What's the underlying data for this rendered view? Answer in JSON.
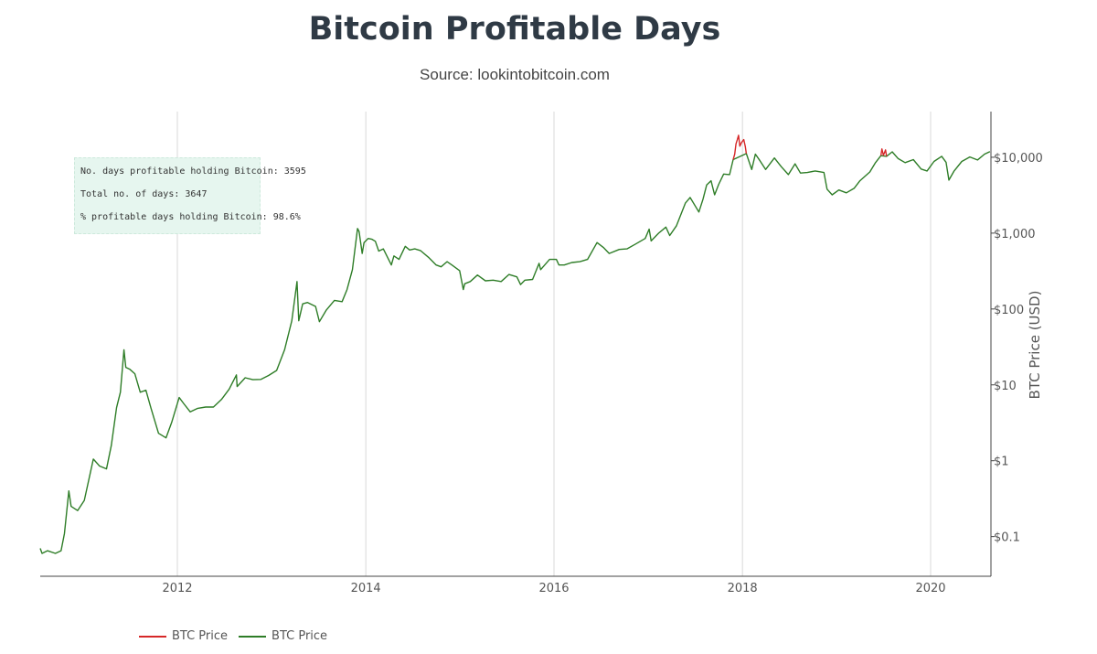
{
  "chart_data": {
    "type": "line",
    "title": "Bitcoin Profitable Days",
    "subtitle": "Source: lookintobitcoin.com",
    "ylabel": "BTC Price (USD)",
    "xlabel": "",
    "y_scale": "log",
    "ylim": [
      0.03,
      40000
    ],
    "xlim": [
      "2010-07-18",
      "2020-08-22"
    ],
    "x_ticks": [
      "2012",
      "2014",
      "2016",
      "2018",
      "2020"
    ],
    "y_ticks": [
      "$0.1",
      "$1",
      "$10",
      "$100",
      "$1,000",
      "$10,000"
    ],
    "grid": "vertical",
    "legend_position": "bottom-left",
    "series": [
      {
        "name": "BTC Price",
        "color": "#d62728",
        "segments": [
          [
            [
              "2017-11-26",
              9300
            ],
            [
              "2017-12-02",
              11000
            ],
            [
              "2017-12-07",
              15000
            ],
            [
              "2017-12-12",
              17000
            ],
            [
              "2017-12-17",
              19500
            ],
            [
              "2017-12-22",
              14000
            ],
            [
              "2017-12-28",
              15500
            ],
            [
              "2018-01-06",
              17100
            ],
            [
              "2018-01-12",
              13800
            ],
            [
              "2018-01-16",
              11200
            ]
          ],
          [
            [
              "2019-06-22",
              10500
            ],
            [
              "2019-06-26",
              12900
            ],
            [
              "2019-07-02",
              10600
            ],
            [
              "2019-07-10",
              12500
            ],
            [
              "2019-07-14",
              10300
            ]
          ]
        ]
      },
      {
        "name": "BTC Price",
        "color": "#2e7d27",
        "points": [
          [
            "2010-07-18",
            0.07
          ],
          [
            "2010-07-25",
            0.06
          ],
          [
            "2010-08-15",
            0.065
          ],
          [
            "2010-09-15",
            0.06
          ],
          [
            "2010-10-07",
            0.065
          ],
          [
            "2010-10-20",
            0.11
          ],
          [
            "2010-11-06",
            0.4
          ],
          [
            "2010-11-15",
            0.25
          ],
          [
            "2010-12-10",
            0.22
          ],
          [
            "2011-01-05",
            0.3
          ],
          [
            "2011-02-09",
            1.05
          ],
          [
            "2011-03-05",
            0.85
          ],
          [
            "2011-04-01",
            0.78
          ],
          [
            "2011-04-20",
            1.6
          ],
          [
            "2011-05-10",
            5
          ],
          [
            "2011-05-25",
            8
          ],
          [
            "2011-06-08",
            29
          ],
          [
            "2011-06-15",
            17
          ],
          [
            "2011-07-01",
            16
          ],
          [
            "2011-07-20",
            14
          ],
          [
            "2011-08-10",
            8
          ],
          [
            "2011-09-01",
            8.5
          ],
          [
            "2011-09-20",
            5
          ],
          [
            "2011-10-20",
            2.3
          ],
          [
            "2011-11-18",
            2.0
          ],
          [
            "2011-12-10",
            3.2
          ],
          [
            "2012-01-08",
            6.8
          ],
          [
            "2012-01-25",
            5.7
          ],
          [
            "2012-02-20",
            4.4
          ],
          [
            "2012-03-20",
            4.9
          ],
          [
            "2012-04-20",
            5.1
          ],
          [
            "2012-05-20",
            5.1
          ],
          [
            "2012-06-20",
            6.4
          ],
          [
            "2012-07-20",
            8.8
          ],
          [
            "2012-08-17",
            13.5
          ],
          [
            "2012-08-20",
            9.5
          ],
          [
            "2012-09-20",
            12.4
          ],
          [
            "2012-10-20",
            11.7
          ],
          [
            "2012-11-20",
            11.8
          ],
          [
            "2012-12-20",
            13.3
          ],
          [
            "2013-01-20",
            15.5
          ],
          [
            "2013-02-20",
            29
          ],
          [
            "2013-03-20",
            70
          ],
          [
            "2013-04-09",
            230
          ],
          [
            "2013-04-16",
            70
          ],
          [
            "2013-05-01",
            117
          ],
          [
            "2013-05-20",
            122
          ],
          [
            "2013-06-20",
            108
          ],
          [
            "2013-07-05",
            68
          ],
          [
            "2013-08-01",
            97
          ],
          [
            "2013-09-01",
            130
          ],
          [
            "2013-10-01",
            125
          ],
          [
            "2013-10-20",
            180
          ],
          [
            "2013-11-10",
            330
          ],
          [
            "2013-11-30",
            1150
          ],
          [
            "2013-12-06",
            1050
          ],
          [
            "2013-12-18",
            540
          ],
          [
            "2013-12-25",
            750
          ],
          [
            "2014-01-10",
            850
          ],
          [
            "2014-01-25",
            830
          ],
          [
            "2014-02-07",
            780
          ],
          [
            "2014-02-20",
            580
          ],
          [
            "2014-03-10",
            620
          ],
          [
            "2014-04-10",
            380
          ],
          [
            "2014-04-20",
            500
          ],
          [
            "2014-05-10",
            450
          ],
          [
            "2014-06-03",
            670
          ],
          [
            "2014-06-20",
            600
          ],
          [
            "2014-07-10",
            620
          ],
          [
            "2014-08-01",
            590
          ],
          [
            "2014-09-01",
            480
          ],
          [
            "2014-10-01",
            380
          ],
          [
            "2014-10-20",
            360
          ],
          [
            "2014-11-12",
            420
          ],
          [
            "2014-12-01",
            380
          ],
          [
            "2014-12-31",
            320
          ],
          [
            "2015-01-14",
            180
          ],
          [
            "2015-01-20",
            215
          ],
          [
            "2015-02-10",
            230
          ],
          [
            "2015-03-10",
            280
          ],
          [
            "2015-04-10",
            235
          ],
          [
            "2015-05-10",
            240
          ],
          [
            "2015-06-10",
            230
          ],
          [
            "2015-07-10",
            285
          ],
          [
            "2015-08-10",
            265
          ],
          [
            "2015-08-24",
            210
          ],
          [
            "2015-09-10",
            240
          ],
          [
            "2015-10-10",
            245
          ],
          [
            "2015-11-04",
            400
          ],
          [
            "2015-11-10",
            330
          ],
          [
            "2015-12-15",
            450
          ],
          [
            "2016-01-10",
            450
          ],
          [
            "2016-01-20",
            380
          ],
          [
            "2016-02-10",
            380
          ],
          [
            "2016-03-10",
            410
          ],
          [
            "2016-04-10",
            420
          ],
          [
            "2016-05-10",
            450
          ],
          [
            "2016-06-16",
            750
          ],
          [
            "2016-07-10",
            650
          ],
          [
            "2016-08-02",
            540
          ],
          [
            "2016-09-10",
            610
          ],
          [
            "2016-10-10",
            620
          ],
          [
            "2016-11-10",
            710
          ],
          [
            "2016-12-20",
            850
          ],
          [
            "2017-01-04",
            1130
          ],
          [
            "2017-01-12",
            790
          ],
          [
            "2017-02-10",
            1000
          ],
          [
            "2017-03-10",
            1200
          ],
          [
            "2017-03-25",
            930
          ],
          [
            "2017-04-20",
            1250
          ],
          [
            "2017-05-25",
            2500
          ],
          [
            "2017-06-12",
            2950
          ],
          [
            "2017-07-16",
            1900
          ],
          [
            "2017-08-01",
            2800
          ],
          [
            "2017-08-15",
            4300
          ],
          [
            "2017-09-01",
            4900
          ],
          [
            "2017-09-15",
            3200
          ],
          [
            "2017-10-01",
            4400
          ],
          [
            "2017-10-20",
            6000
          ],
          [
            "2017-11-12",
            5900
          ],
          [
            "2017-11-26",
            9300
          ],
          [
            "2018-01-16",
            11200
          ],
          [
            "2018-02-06",
            6900
          ],
          [
            "2018-02-20",
            11000
          ],
          [
            "2018-03-10",
            9000
          ],
          [
            "2018-04-01",
            6900
          ],
          [
            "2018-05-05",
            9800
          ],
          [
            "2018-06-01",
            7500
          ],
          [
            "2018-06-28",
            5900
          ],
          [
            "2018-07-24",
            8200
          ],
          [
            "2018-08-14",
            6200
          ],
          [
            "2018-09-10",
            6300
          ],
          [
            "2018-10-10",
            6600
          ],
          [
            "2018-11-13",
            6300
          ],
          [
            "2018-11-25",
            3800
          ],
          [
            "2018-12-15",
            3200
          ],
          [
            "2019-01-10",
            3700
          ],
          [
            "2019-02-08",
            3400
          ],
          [
            "2019-03-10",
            3900
          ],
          [
            "2019-04-02",
            4900
          ],
          [
            "2019-05-10",
            6400
          ],
          [
            "2019-06-01",
            8500
          ],
          [
            "2019-06-22",
            10500
          ],
          [
            "2019-07-14",
            10300
          ],
          [
            "2019-08-05",
            11800
          ],
          [
            "2019-08-28",
            9600
          ],
          [
            "2019-09-24",
            8500
          ],
          [
            "2019-10-26",
            9300
          ],
          [
            "2019-11-25",
            7000
          ],
          [
            "2019-12-18",
            6600
          ],
          [
            "2020-01-14",
            8800
          ],
          [
            "2020-02-13",
            10300
          ],
          [
            "2020-03-01",
            8600
          ],
          [
            "2020-03-12",
            5000
          ],
          [
            "2020-04-01",
            6600
          ],
          [
            "2020-05-01",
            8800
          ],
          [
            "2020-06-01",
            10100
          ],
          [
            "2020-07-01",
            9200
          ],
          [
            "2020-07-28",
            11000
          ],
          [
            "2020-08-18",
            11900
          ]
        ]
      }
    ]
  },
  "stats": {
    "profitable_days": "No. days profitable holding Bitcoin: 3595",
    "total_days": "Total no. of days: 3647",
    "percent": "% profitable days holding Bitcoin: 98.6%"
  },
  "legend": {
    "red_label": "BTC Price",
    "green_label": "BTC Price",
    "red_color": "#d62728",
    "green_color": "#2e7d27"
  }
}
